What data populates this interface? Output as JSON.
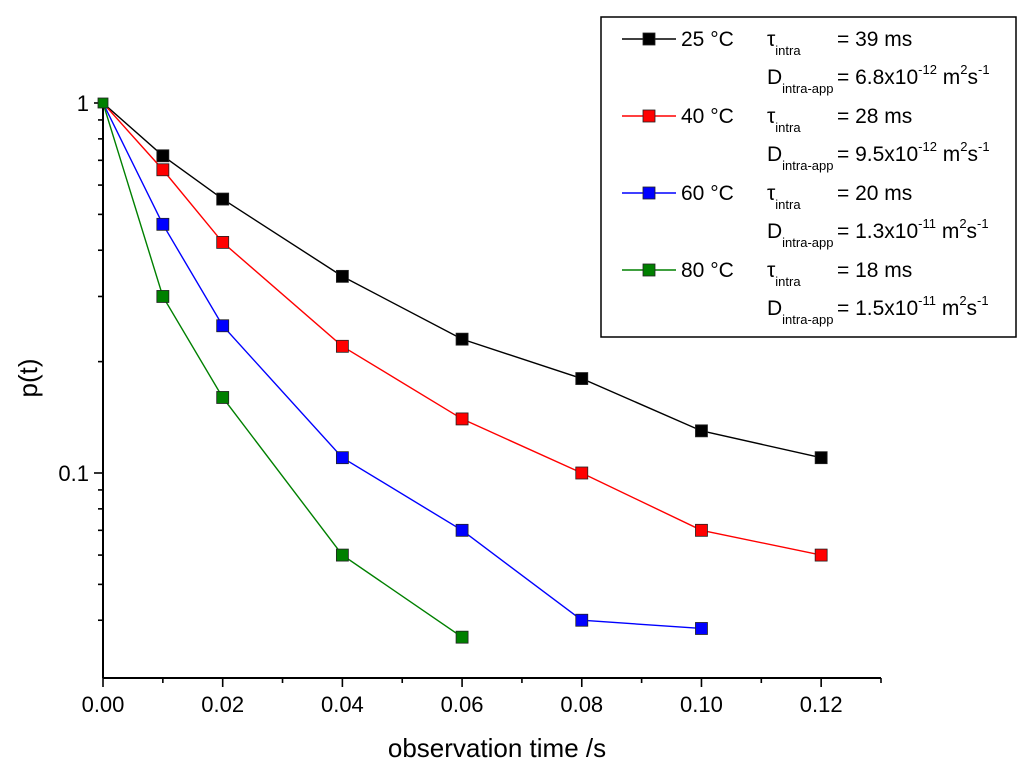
{
  "chart_data": {
    "type": "line",
    "x_scale": "linear",
    "y_scale": "log",
    "xlabel": "observation time /s",
    "ylabel": "p(t)",
    "xlim": [
      0,
      0.13
    ],
    "ylim": [
      0.03,
      1
    ],
    "x_ticks": [
      0,
      0.02,
      0.04,
      0.06,
      0.08,
      0.1,
      0.12
    ],
    "x_tick_labels": [
      "0.00",
      "0.02",
      "0.04",
      "0.06",
      "0.08",
      "0.10",
      "0.12"
    ],
    "y_ticks": [
      0.1,
      1
    ],
    "y_tick_labels": [
      "0.1",
      "1"
    ],
    "legend_position": "top-right",
    "series": [
      {
        "name": "25 °C",
        "color": "#000000",
        "tau_label": "τ",
        "tau_sub": "intra",
        "tau_value": "= 39 ms",
        "d_label": "D",
        "d_sub": "intra-app",
        "d_value_prefix": "= 6.8x10",
        "d_value_exp": "-12",
        "d_units_m": " m",
        "d_units_m_exp": "2",
        "d_units_s": "s",
        "d_units_s_exp": "-1",
        "x": [
          0,
          0.01,
          0.02,
          0.04,
          0.06,
          0.08,
          0.1,
          0.12
        ],
        "y": [
          1,
          0.72,
          0.55,
          0.34,
          0.23,
          0.18,
          0.13,
          0.11
        ]
      },
      {
        "name": "40 °C",
        "color": "#ff0000",
        "tau_label": "τ",
        "tau_sub": "intra",
        "tau_value": "= 28 ms",
        "d_label": "D",
        "d_sub": "intra-app",
        "d_value_prefix": "= 9.5x10",
        "d_value_exp": "-12",
        "d_units_m": " m",
        "d_units_m_exp": "2",
        "d_units_s": "s",
        "d_units_s_exp": "-1",
        "x": [
          0,
          0.01,
          0.02,
          0.04,
          0.06,
          0.08,
          0.1,
          0.12
        ],
        "y": [
          1,
          0.66,
          0.42,
          0.22,
          0.14,
          0.1,
          0.07,
          0.06
        ]
      },
      {
        "name": "60 °C",
        "color": "#0000ff",
        "tau_label": "τ",
        "tau_sub": "intra",
        "tau_value": "= 20 ms",
        "d_label": "D",
        "d_sub": "intra-app",
        "d_value_prefix": "= 1.3x10",
        "d_value_exp": "-11",
        "d_units_m": " m",
        "d_units_m_exp": "2",
        "d_units_s": "s",
        "d_units_s_exp": "-1",
        "x": [
          0,
          0.01,
          0.02,
          0.04,
          0.06,
          0.08,
          0.1
        ],
        "y": [
          1,
          0.47,
          0.25,
          0.11,
          0.07,
          0.04,
          0.038
        ]
      },
      {
        "name": "80 °C",
        "color": "#008000",
        "tau_label": "τ",
        "tau_sub": "intra",
        "tau_value": "= 18 ms",
        "d_label": "D",
        "d_sub": "intra-app",
        "d_value_prefix": "= 1.5x10",
        "d_value_exp": "-11",
        "d_units_m": " m",
        "d_units_m_exp": "2",
        "d_units_s": "s",
        "d_units_s_exp": "-1",
        "x": [
          0,
          0.01,
          0.02,
          0.04,
          0.06
        ],
        "y": [
          1,
          0.3,
          0.16,
          0.06,
          0.036
        ]
      }
    ]
  }
}
